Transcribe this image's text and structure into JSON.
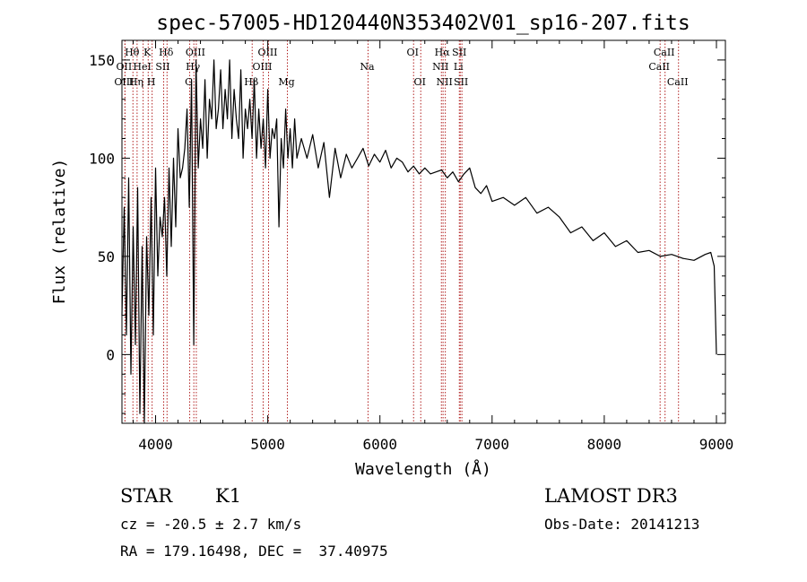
{
  "chart_data": {
    "type": "line",
    "title": "spec-57005-HD120440N353402V01_sp16-207.fits",
    "xlabel": "Wavelength (Å)",
    "ylabel": "Flux (relative)",
    "xlim": [
      3700,
      9080
    ],
    "ylim": [
      -35,
      160
    ],
    "xticks": [
      4000,
      5000,
      6000,
      7000,
      8000,
      9000
    ],
    "yticks": [
      0,
      50,
      100,
      150
    ],
    "grid": false,
    "line_color": "#000000",
    "marker_color": "#b22222",
    "spectrum": {
      "name": "Flux",
      "x": [
        3700,
        3720,
        3740,
        3760,
        3780,
        3800,
        3820,
        3840,
        3860,
        3880,
        3900,
        3920,
        3940,
        3960,
        3980,
        4000,
        4020,
        4040,
        4060,
        4080,
        4100,
        4120,
        4140,
        4160,
        4180,
        4200,
        4220,
        4240,
        4260,
        4280,
        4300,
        4320,
        4340,
        4360,
        4380,
        4400,
        4420,
        4440,
        4460,
        4480,
        4500,
        4520,
        4540,
        4560,
        4580,
        4600,
        4620,
        4640,
        4660,
        4680,
        4700,
        4720,
        4740,
        4760,
        4780,
        4800,
        4820,
        4840,
        4860,
        4880,
        4900,
        4920,
        4940,
        4960,
        4980,
        5000,
        5020,
        5040,
        5060,
        5080,
        5100,
        5120,
        5140,
        5160,
        5180,
        5200,
        5220,
        5240,
        5260,
        5280,
        5300,
        5350,
        5400,
        5450,
        5500,
        5550,
        5600,
        5650,
        5700,
        5750,
        5800,
        5850,
        5900,
        5950,
        6000,
        6050,
        6100,
        6150,
        6200,
        6250,
        6300,
        6350,
        6400,
        6450,
        6500,
        6550,
        6600,
        6650,
        6700,
        6750,
        6800,
        6850,
        6900,
        6950,
        7000,
        7100,
        7200,
        7300,
        7400,
        7500,
        7600,
        7700,
        7800,
        7900,
        8000,
        8100,
        8200,
        8300,
        8400,
        8500,
        8600,
        8700,
        8800,
        8900,
        8950,
        8980,
        9000
      ],
      "y": [
        20,
        75,
        10,
        90,
        -10,
        65,
        5,
        85,
        -30,
        55,
        -35,
        60,
        20,
        80,
        10,
        95,
        40,
        70,
        60,
        80,
        40,
        95,
        55,
        100,
        65,
        115,
        90,
        95,
        105,
        125,
        75,
        140,
        5,
        150,
        95,
        120,
        105,
        140,
        100,
        130,
        120,
        150,
        115,
        125,
        145,
        115,
        135,
        120,
        150,
        110,
        135,
        120,
        110,
        145,
        100,
        125,
        115,
        130,
        110,
        140,
        100,
        125,
        105,
        120,
        95,
        135,
        100,
        115,
        110,
        120,
        65,
        110,
        95,
        125,
        100,
        115,
        95,
        120,
        100,
        105,
        110,
        100,
        112,
        95,
        108,
        80,
        105,
        90,
        102,
        95,
        100,
        105,
        96,
        102,
        98,
        104,
        95,
        100,
        98,
        93,
        96,
        92,
        95,
        92,
        93,
        94,
        90,
        93,
        88,
        92,
        95,
        85,
        82,
        86,
        78,
        80,
        76,
        80,
        72,
        75,
        70,
        62,
        65,
        58,
        62,
        55,
        58,
        52,
        53,
        50,
        51,
        49,
        48,
        51,
        52,
        45,
        0
      ]
    },
    "line_markers": [
      {
        "label": "Hθ",
        "wavelength": 3798,
        "row": 1
      },
      {
        "label": "OII",
        "wavelength": 3727,
        "row": 2
      },
      {
        "label": "OIII",
        "wavelength": 3727,
        "row": 3
      },
      {
        "label": "Hη",
        "wavelength": 3835,
        "row": 3
      },
      {
        "label": "HeI",
        "wavelength": 3889,
        "row": 2
      },
      {
        "label": "K",
        "wavelength": 3934,
        "row": 1
      },
      {
        "label": "H",
        "wavelength": 3969,
        "row": 3
      },
      {
        "label": "SII",
        "wavelength": 4072,
        "row": 2
      },
      {
        "label": "Hδ",
        "wavelength": 4102,
        "row": 1
      },
      {
        "label": "G",
        "wavelength": 4304,
        "row": 3
      },
      {
        "label": "Hγ",
        "wavelength": 4341,
        "row": 2
      },
      {
        "label": "OIII",
        "wavelength": 4363,
        "row": 1
      },
      {
        "label": "Hβ",
        "wavelength": 4861,
        "row": 3
      },
      {
        "label": "OIII",
        "wavelength": 4959,
        "row": 2
      },
      {
        "label": "OIII",
        "wavelength": 5007,
        "row": 1
      },
      {
        "label": "Mg",
        "wavelength": 5175,
        "row": 3
      },
      {
        "label": "Na",
        "wavelength": 5894,
        "row": 2
      },
      {
        "label": "OI",
        "wavelength": 6300,
        "row": 1
      },
      {
        "label": "OI",
        "wavelength": 6364,
        "row": 3
      },
      {
        "label": "NII",
        "wavelength": 6548,
        "row": 2
      },
      {
        "label": "Hα",
        "wavelength": 6563,
        "row": 1
      },
      {
        "label": "NII",
        "wavelength": 6583,
        "row": 3
      },
      {
        "label": "Li",
        "wavelength": 6708,
        "row": 2
      },
      {
        "label": "SII",
        "wavelength": 6716,
        "row": 1
      },
      {
        "label": "SII",
        "wavelength": 6731,
        "row": 3
      },
      {
        "label": "CaII",
        "wavelength": 8498,
        "row": 2
      },
      {
        "label": "CaII",
        "wavelength": 8542,
        "row": 1
      },
      {
        "label": "CaII",
        "wavelength": 8662,
        "row": 3
      }
    ]
  },
  "info": {
    "object_type": "STAR",
    "subclass": "K1",
    "survey": "LAMOST DR3",
    "redshift": "cz = -20.5 ± 2.7 km/s",
    "obs_date": "Obs-Date: 20141213",
    "coords": "RA = 179.16498, DEC =  37.40975"
  }
}
